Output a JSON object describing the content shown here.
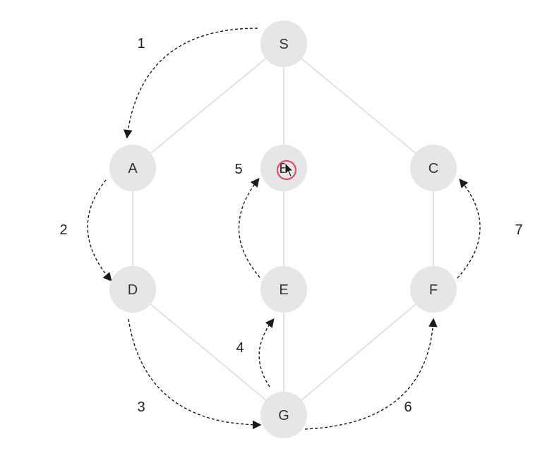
{
  "nodes": [
    {
      "id": "S",
      "label": "S"
    },
    {
      "id": "A",
      "label": "A"
    },
    {
      "id": "B",
      "label": "B"
    },
    {
      "id": "C",
      "label": "C"
    },
    {
      "id": "D",
      "label": "D"
    },
    {
      "id": "E",
      "label": "E"
    },
    {
      "id": "F",
      "label": "F"
    },
    {
      "id": "G",
      "label": "G"
    }
  ],
  "edges": [
    {
      "from": "S",
      "to": "A"
    },
    {
      "from": "S",
      "to": "B"
    },
    {
      "from": "S",
      "to": "C"
    },
    {
      "from": "A",
      "to": "D"
    },
    {
      "from": "B",
      "to": "E"
    },
    {
      "from": "C",
      "to": "F"
    },
    {
      "from": "D",
      "to": "G"
    },
    {
      "from": "E",
      "to": "G"
    },
    {
      "from": "F",
      "to": "G"
    }
  ],
  "steps": [
    {
      "label": "1",
      "from": "S",
      "to": "A"
    },
    {
      "label": "2",
      "from": "A",
      "to": "D"
    },
    {
      "label": "3",
      "from": "D",
      "to": "G"
    },
    {
      "label": "4",
      "from": "G",
      "to": "E"
    },
    {
      "label": "5",
      "from": "E",
      "to": "B"
    },
    {
      "label": "6",
      "from": "G",
      "to": "F"
    },
    {
      "label": "7",
      "from": "F",
      "to": "C"
    }
  ],
  "colors": {
    "node_fill": "#e6e6e6",
    "edge": "#e2e2e2",
    "arrow": "#1a1a1a",
    "cursor": "#e0506a"
  }
}
